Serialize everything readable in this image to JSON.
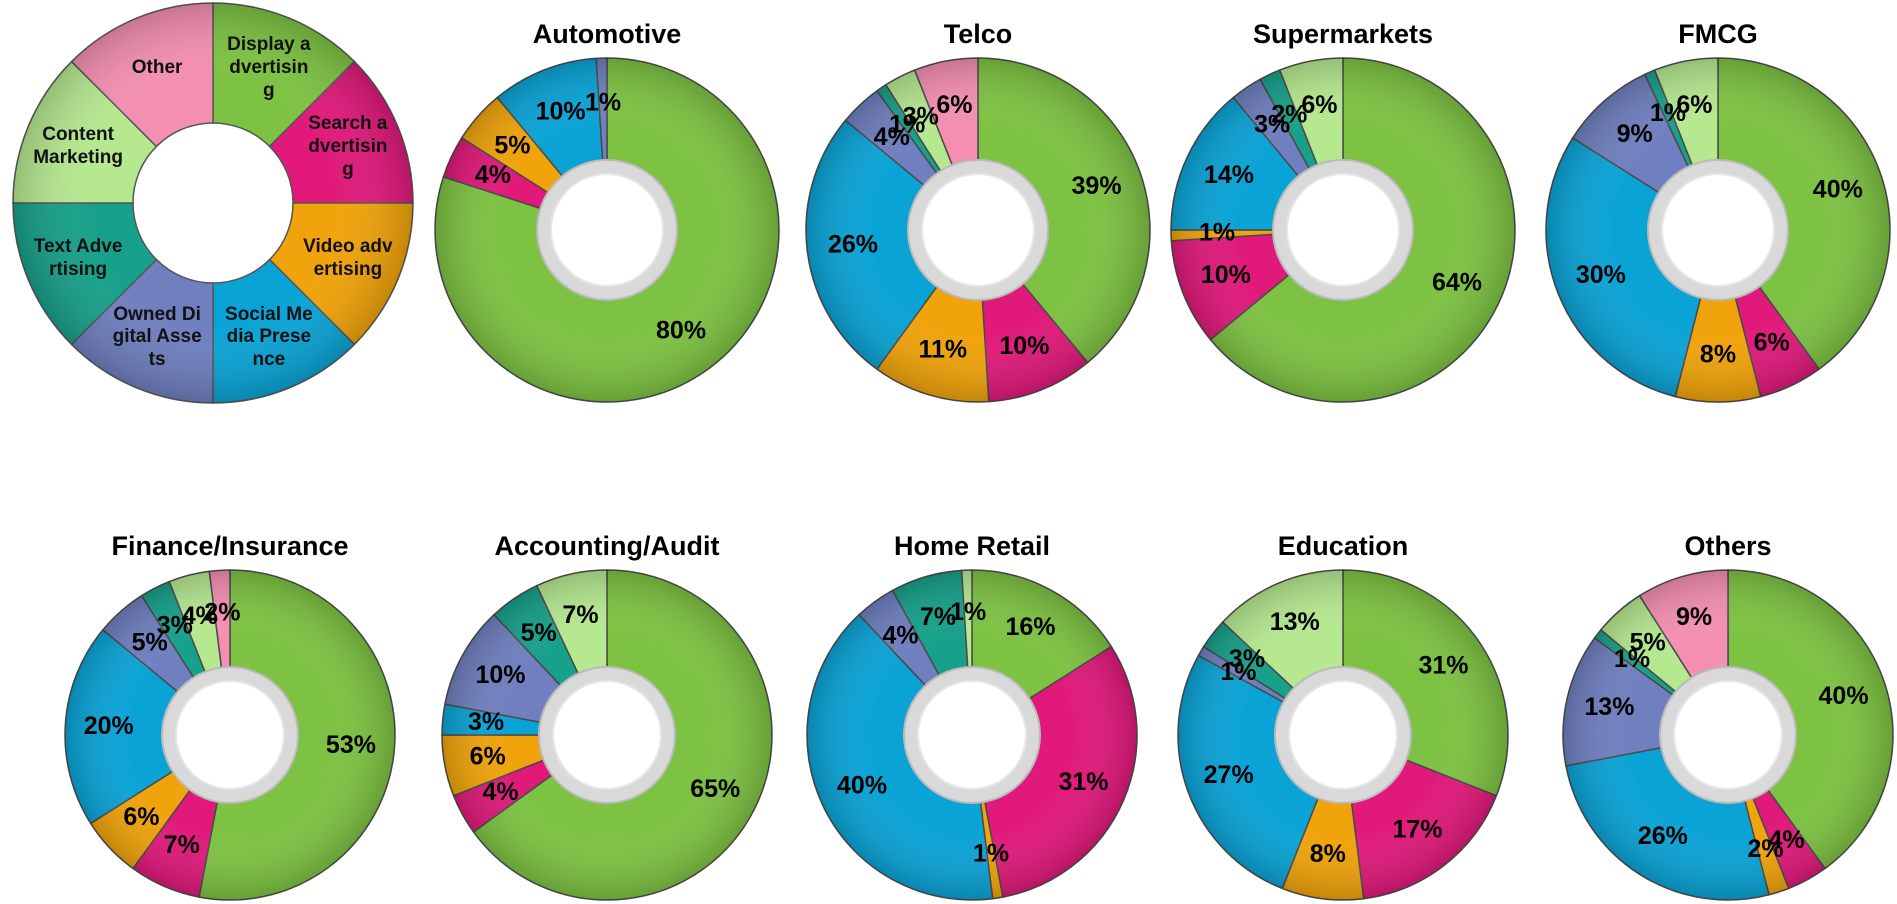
{
  "chart_data": [
    {
      "type": "donut-legend",
      "categories": [
        "Display advertising",
        "Search advertising",
        "Video advertising",
        "Social Media Presence",
        "Owned Digital Assets",
        "Text Advertising",
        "Content Marketing",
        "Other"
      ],
      "colors": [
        "#7dc242",
        "#e0197a",
        "#f0a30a",
        "#0aa3d6",
        "#6f7fbf",
        "#17a08a",
        "#b5e88f",
        "#f48fb1"
      ]
    },
    {
      "type": "donut",
      "title": "Automotive",
      "values": [
        80,
        4,
        5,
        10,
        1,
        0,
        0,
        0
      ],
      "value_labels": [
        "80%",
        "4%",
        "5%",
        "10%",
        "1%",
        null,
        null,
        null
      ]
    },
    {
      "type": "donut",
      "title": "Telco",
      "values": [
        39,
        10,
        11,
        26,
        4,
        1,
        3,
        6
      ],
      "value_labels": [
        "39%",
        "10%",
        "11%",
        "26%",
        "4%",
        "1%",
        "3%",
        "6%"
      ]
    },
    {
      "type": "donut",
      "title": "Supermarkets",
      "values": [
        64,
        10,
        1,
        14,
        3,
        2,
        6,
        0
      ],
      "value_labels": [
        "64%",
        "10%",
        "1%",
        "14%",
        "3%",
        "2%",
        "6%",
        null
      ]
    },
    {
      "type": "donut",
      "title": "FMCG",
      "values": [
        40,
        6,
        8,
        30,
        9,
        1,
        6,
        0
      ],
      "value_labels": [
        "40%",
        "6%",
        "8%",
        "30%",
        "9%",
        "1%",
        "6%",
        null
      ]
    },
    {
      "type": "donut",
      "title": "Finance/Insurance",
      "values": [
        53,
        7,
        6,
        20,
        5,
        3,
        4,
        2
      ],
      "value_labels": [
        "53%",
        "7%",
        "6%",
        "20%",
        "5%",
        "3%",
        "4%",
        "2%"
      ]
    },
    {
      "type": "donut",
      "title": "Accounting/Audit",
      "values": [
        65,
        4,
        6,
        3,
        10,
        5,
        7,
        0
      ],
      "value_labels": [
        "65%",
        "4%",
        "6%",
        "3%",
        "10%",
        "5%",
        "7%",
        null
      ]
    },
    {
      "type": "donut",
      "title": "Home Retail",
      "values": [
        16,
        31,
        1,
        40,
        4,
        7,
        1,
        0
      ],
      "value_labels": [
        "16%",
        "31%",
        "1%",
        "40%",
        "4%",
        "7%",
        "1%",
        null
      ]
    },
    {
      "type": "donut",
      "title": "Education",
      "values": [
        31,
        17,
        8,
        27,
        1,
        3,
        13,
        0
      ],
      "value_labels": [
        "31%",
        "17%",
        "8%",
        "27%",
        "1%",
        "3%",
        "13%",
        null
      ]
    },
    {
      "type": "donut",
      "title": "Others",
      "values": [
        40,
        4,
        2,
        26,
        13,
        1,
        5,
        9
      ],
      "value_labels": [
        "40%",
        "4%",
        "2%",
        "26%",
        "13%",
        "1%",
        "5%",
        "9%"
      ]
    }
  ]
}
